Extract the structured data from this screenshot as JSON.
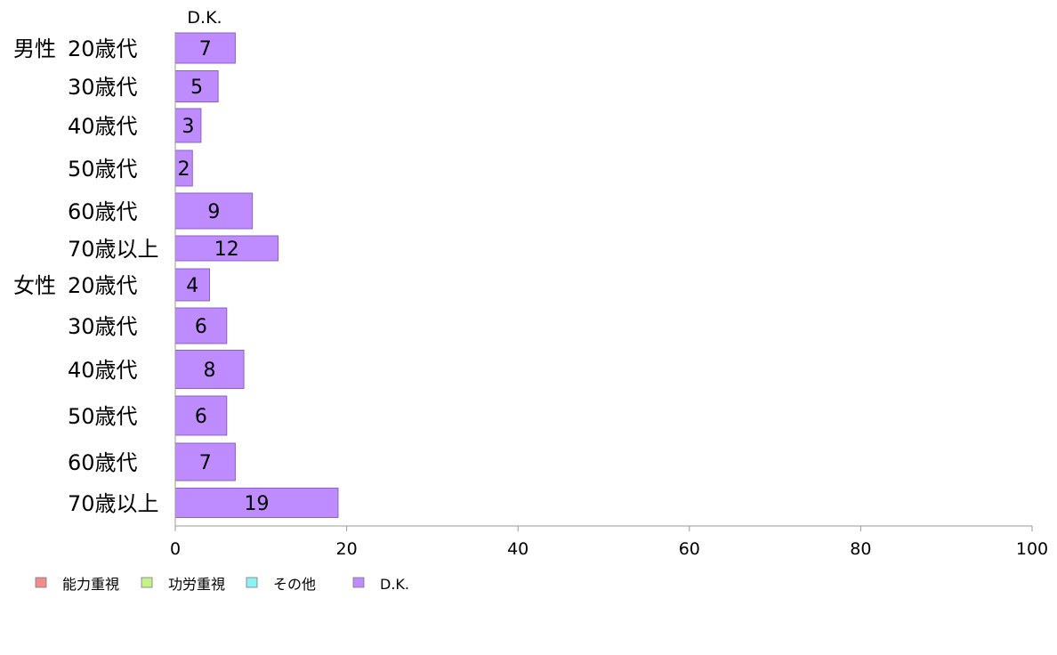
{
  "chart_data": {
    "type": "bar",
    "orientation": "horizontal",
    "stacked": true,
    "title": "",
    "xlabel": "",
    "ylabel": "",
    "xlim": [
      0,
      100
    ],
    "xticks": [
      0,
      20,
      40,
      60,
      80,
      100
    ],
    "grid": false,
    "legend_position": "bottom-left",
    "top_segment_label": "D.K.",
    "groups": [
      {
        "label": "男性",
        "start_index": 0
      },
      {
        "label": "女性",
        "start_index": 6
      }
    ],
    "categories": [
      "20歳代",
      "30歳代",
      "40歳代",
      "50歳代",
      "60歳代",
      "70歳以上",
      "20歳代",
      "30歳代",
      "40歳代",
      "50歳代",
      "60歳代",
      "70歳以上"
    ],
    "series": [
      {
        "name": "能力重視",
        "color": "#F28C8C",
        "values": [
          0,
          0,
          0,
          0,
          0,
          0,
          0,
          0,
          0,
          0,
          0,
          0
        ]
      },
      {
        "name": "功労重視",
        "color": "#C6F28C",
        "values": [
          0,
          0,
          0,
          0,
          0,
          0,
          0,
          0,
          0,
          0,
          0,
          0
        ]
      },
      {
        "name": "その他",
        "color": "#8CF2F2",
        "values": [
          0,
          0,
          0,
          0,
          0,
          0,
          0,
          0,
          0,
          0,
          0,
          0
        ]
      },
      {
        "name": "D.K.",
        "color": "#BF8CFF",
        "values": [
          7,
          5,
          3,
          2,
          9,
          12,
          4,
          6,
          8,
          6,
          7,
          19
        ]
      }
    ],
    "data_labels": [
      "7",
      "5",
      "3",
      "2",
      "9",
      "12",
      "4",
      "6",
      "8",
      "6",
      "7",
      "19"
    ]
  }
}
